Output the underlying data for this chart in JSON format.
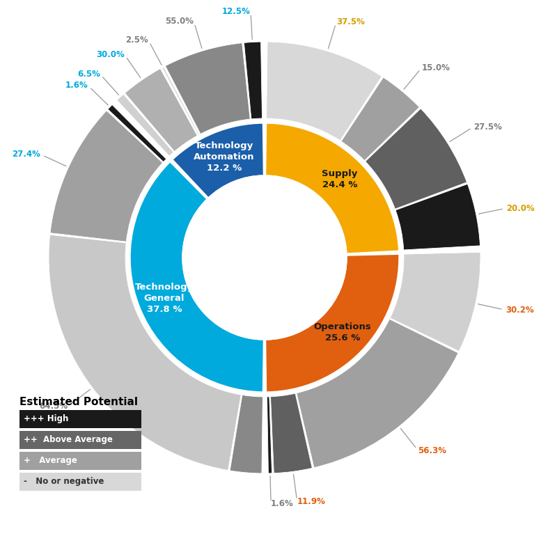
{
  "inner_segments": [
    {
      "label": "Supply\n24.4 %",
      "value": 24.4,
      "color": "#F5A800",
      "text_color": "#1a1a1a"
    },
    {
      "label": "Operations\n25.6 %",
      "value": 25.6,
      "color": "#E06010",
      "text_color": "#1a1a1a"
    },
    {
      "label": "Technology\nGeneral\n37.8 %",
      "value": 37.8,
      "color": "#00AADD",
      "text_color": "#FFFFFF"
    },
    {
      "label": "Technology\nAutomation\n12.2 %",
      "value": 12.2,
      "color": "#1B5FAA",
      "text_color": "#FFFFFF"
    }
  ],
  "outer_segments": [
    {
      "sector": "Supply",
      "subsegments": [
        {
          "pct": 20.0,
          "color": "#1A1A1A",
          "label": "20.0%",
          "label_color": "#D4A000"
        },
        {
          "pct": 27.5,
          "color": "#606060",
          "label": "27.5%",
          "label_color": "#808080"
        },
        {
          "pct": 15.0,
          "color": "#A0A0A0",
          "label": "15.0%",
          "label_color": "#808080"
        },
        {
          "pct": 37.5,
          "color": "#D8D8D8",
          "label": "37.5%",
          "label_color": "#D4A000"
        }
      ]
    },
    {
      "sector": "Operations",
      "subsegments": [
        {
          "pct": 1.6,
          "color": "#1A1A1A",
          "label": "1.6%",
          "label_color": "#808080"
        },
        {
          "pct": 11.9,
          "color": "#606060",
          "label": "11.9%",
          "label_color": "#E06010"
        },
        {
          "pct": 56.3,
          "color": "#A0A0A0",
          "label": "56.3%",
          "label_color": "#E06010"
        },
        {
          "pct": 30.2,
          "color": "#D0D0D0",
          "label": "30.2%",
          "label_color": "#E06010"
        }
      ]
    },
    {
      "sector": "Technology General",
      "subsegments": [
        {
          "pct": 1.6,
          "color": "#1A1A1A",
          "label": "1.6%",
          "label_color": "#00AADD"
        },
        {
          "pct": 27.4,
          "color": "#A0A0A0",
          "label": "27.4%",
          "label_color": "#00AADD"
        },
        {
          "pct": 64.5,
          "color": "#C8C8C8",
          "label": "64.5%",
          "label_color": "#808080"
        },
        {
          "pct": 6.5,
          "color": "#888888",
          "label": "",
          "label_color": "#00AADD"
        }
      ]
    },
    {
      "sector": "Technology Automation",
      "subsegments": [
        {
          "pct": 12.5,
          "color": "#1A1A1A",
          "label": "12.5%",
          "label_color": "#00AADD"
        },
        {
          "pct": 55.0,
          "color": "#888888",
          "label": "55.0%",
          "label_color": "#808080"
        },
        {
          "pct": 2.5,
          "color": "#D8D8D8",
          "label": "2.5%",
          "label_color": "#808080"
        },
        {
          "pct": 30.0,
          "color": "#B0B0B0",
          "label": "30.0%",
          "label_color": "#00AADD"
        },
        {
          "pct": 6.5,
          "color": "#D0D0D0",
          "label": "6.5%",
          "label_color": "#00AADD"
        }
      ]
    }
  ],
  "legend_title": "Estimated Potential",
  "legend_items": [
    {
      "symbol": "+++ High",
      "color": "#1A1A1A",
      "text_color": "#FFFFFF"
    },
    {
      "symbol": "++  Above Average",
      "color": "#666666",
      "text_color": "#FFFFFF"
    },
    {
      "symbol": "+   Average",
      "color": "#A0A0A0",
      "text_color": "#FFFFFF"
    },
    {
      "symbol": "-   No or negative",
      "color": "#D8D8D8",
      "text_color": "#333333"
    }
  ]
}
